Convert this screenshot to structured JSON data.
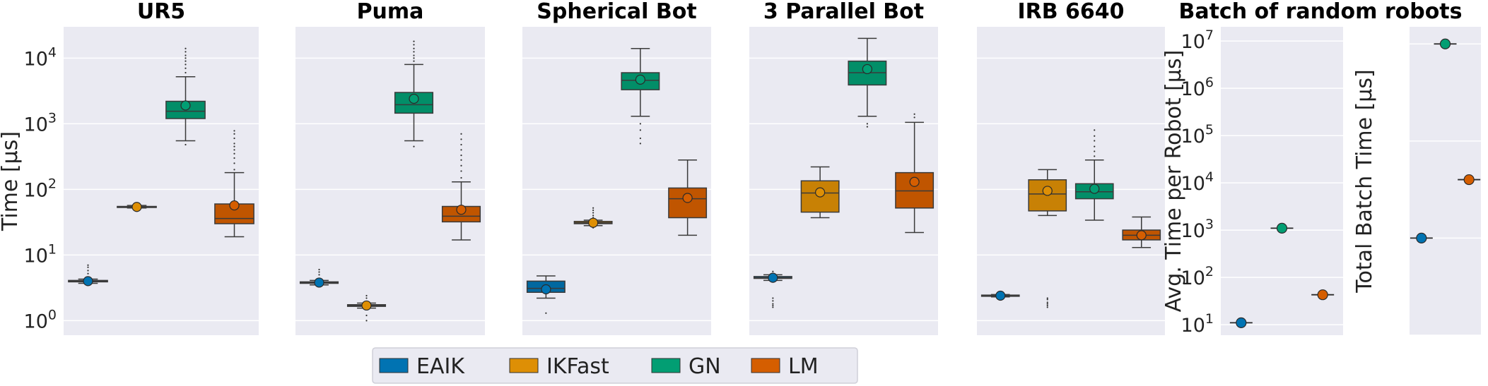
{
  "figure": {
    "batch_group_title": "Batch of random robots"
  },
  "legend": [
    {
      "name": "EAIK",
      "color": "#0173b2"
    },
    {
      "name": "IKFast",
      "color": "#de8f05"
    },
    {
      "name": "GN",
      "color": "#029e73"
    },
    {
      "name": "LM",
      "color": "#d55e00"
    }
  ],
  "chart_data": [
    {
      "type": "box",
      "title": "UR5",
      "ylabel": "Time [µs]",
      "yscale": "log",
      "ylim": [
        0.6,
        30000
      ],
      "yticks": [
        1,
        10,
        100,
        1000,
        10000
      ],
      "ytick_labels": [
        [
          "10",
          "0"
        ],
        [
          "10",
          "1"
        ],
        [
          "10",
          "2"
        ],
        [
          "10",
          "3"
        ],
        [
          "10",
          "4"
        ]
      ],
      "boxes": [
        {
          "series": "EAIK",
          "q1": 3.9,
          "median": 4.0,
          "q3": 4.1,
          "whislo": 3.7,
          "whishi": 4.3,
          "mean": 4.0,
          "fliers": [
            5.2,
            5.8,
            6.5,
            7.0
          ]
        },
        {
          "series": "IKFast",
          "q1": 53,
          "median": 54,
          "q3": 55,
          "whislo": 52,
          "whishi": 57,
          "mean": 54,
          "fliers": [
            60,
            62
          ]
        },
        {
          "series": "GN",
          "q1": 1200,
          "median": 1550,
          "q3": 2200,
          "whislo": 550,
          "whishi": 5200,
          "mean": 1900,
          "fliers": [
            480,
            6000,
            7000,
            8000,
            9000,
            10000,
            11000,
            12500,
            14000
          ]
        },
        {
          "series": "LM",
          "q1": 30,
          "median": 36,
          "q3": 60,
          "whislo": 19,
          "whishi": 180,
          "mean": 57,
          "fliers": [
            200,
            250,
            300,
            350,
            400,
            450,
            500,
            600,
            700,
            780
          ]
        }
      ]
    },
    {
      "type": "box",
      "title": "Puma",
      "yscale": "log",
      "ylim": [
        0.6,
        30000
      ],
      "boxes": [
        {
          "series": "EAIK",
          "q1": 3.7,
          "median": 3.8,
          "q3": 3.9,
          "whislo": 3.5,
          "whishi": 4.1,
          "mean": 3.8,
          "fliers": [
            5.0,
            5.5,
            6.0
          ]
        },
        {
          "series": "IKFast",
          "q1": 1.65,
          "median": 1.7,
          "q3": 1.75,
          "whislo": 1.55,
          "whishi": 1.85,
          "mean": 1.7,
          "fliers": [
            1.0,
            1.2,
            2.2,
            2.4
          ]
        },
        {
          "series": "GN",
          "q1": 1450,
          "median": 1950,
          "q3": 3000,
          "whislo": 550,
          "whishi": 8000,
          "mean": 2400,
          "fliers": [
            450,
            9000,
            10000,
            11000,
            12500,
            14000,
            16000,
            18000
          ]
        },
        {
          "series": "LM",
          "q1": 32,
          "median": 39,
          "q3": 55,
          "whislo": 17,
          "whishi": 130,
          "mean": 49,
          "fliers": [
            150,
            190,
            230,
            280,
            330,
            400,
            480,
            580,
            700
          ]
        }
      ]
    },
    {
      "type": "box",
      "title": "Spherical Bot",
      "yscale": "log",
      "ylim": [
        0.6,
        30000
      ],
      "boxes": [
        {
          "series": "EAIK",
          "q1": 2.7,
          "median": 3.1,
          "q3": 4.0,
          "whislo": 2.2,
          "whishi": 4.8,
          "mean": 3.0,
          "fliers": [
            1.3
          ]
        },
        {
          "series": "IKFast",
          "q1": 30,
          "median": 31,
          "q3": 32.5,
          "whislo": 28,
          "whishi": 34,
          "mean": 31,
          "fliers": [
            26,
            37,
            40,
            44,
            48,
            52
          ]
        },
        {
          "series": "GN",
          "q1": 3300,
          "median": 4600,
          "q3": 6000,
          "whislo": 1300,
          "whishi": 14000,
          "mean": 4700,
          "fliers": [
            500,
            600,
            800,
            1000
          ]
        },
        {
          "series": "LM",
          "q1": 37,
          "median": 72,
          "q3": 105,
          "whislo": 20,
          "whishi": 280,
          "mean": 74,
          "fliers": []
        }
      ]
    },
    {
      "type": "box",
      "title": "3 Parallel Bot",
      "yscale": "log",
      "ylim": [
        0.6,
        30000
      ],
      "boxes": [
        {
          "series": "EAIK",
          "q1": 4.4,
          "median": 4.5,
          "q3": 4.7,
          "whislo": 4.1,
          "whishi": 5.0,
          "mean": 4.5,
          "fliers": [
            1.6,
            1.7,
            1.8,
            2.0,
            2.2,
            5.6
          ]
        },
        {
          "series": "IKFast",
          "q1": 45,
          "median": 88,
          "q3": 135,
          "whislo": 37,
          "whishi": 220,
          "mean": 90,
          "fliers": []
        },
        {
          "series": "GN",
          "q1": 3900,
          "median": 6000,
          "q3": 9000,
          "whislo": 1300,
          "whishi": 20000,
          "mean": 6800,
          "fliers": [
            900,
            1000
          ]
        },
        {
          "series": "LM",
          "q1": 52,
          "median": 95,
          "q3": 180,
          "whislo": 22,
          "whishi": 1050,
          "mean": 130,
          "fliers": [
            1250,
            1400
          ]
        }
      ]
    },
    {
      "type": "box",
      "title": "IRB 6640",
      "yscale": "log",
      "ylim": [
        0.6,
        30000
      ],
      "boxes": [
        {
          "series": "EAIK",
          "q1": 2.35,
          "median": 2.4,
          "q3": 2.45,
          "whislo": 2.3,
          "whishi": 2.5,
          "mean": 2.4,
          "fliers": []
        },
        {
          "series": "IKFast",
          "q1": 47,
          "median": 85,
          "q3": 140,
          "whislo": 40,
          "whishi": 200,
          "mean": 95,
          "fliers": [
            1.6,
            1.7,
            1.8,
            1.9,
            2.1,
            2.2
          ]
        },
        {
          "series": "GN",
          "q1": 72,
          "median": 92,
          "q3": 122,
          "whislo": 34,
          "whishi": 280,
          "mean": 102,
          "fliers": [
            320,
            380,
            450,
            550,
            650,
            800
          ]
        },
        {
          "series": "LM",
          "q1": 17,
          "median": 20,
          "q3": 24,
          "whislo": 13,
          "whishi": 38,
          "mean": 20,
          "fliers": []
        }
      ]
    },
    {
      "type": "scatter",
      "ylabel": "Avg. Time per Robot [µs]",
      "yscale": "log",
      "ylim": [
        6,
        20000000
      ],
      "yticks": [
        10,
        100,
        1000,
        10000,
        100000,
        1000000,
        10000000
      ],
      "ytick_labels": [
        [
          "10",
          "1"
        ],
        [
          "10",
          "2"
        ],
        [
          "10",
          "3"
        ],
        [
          "10",
          "4"
        ],
        [
          "10",
          "5"
        ],
        [
          "10",
          "6"
        ],
        [
          "10",
          "7"
        ]
      ],
      "points": [
        {
          "series": "EAIK",
          "x": 0,
          "y": 11
        },
        {
          "series": "GN",
          "x": 1,
          "y": 1100
        },
        {
          "series": "LM",
          "x": 2,
          "y": 43
        }
      ]
    },
    {
      "type": "scatter",
      "ylabel": "Total Batch Time [µs]",
      "yscale": "log",
      "ylim": [
        10000,
        15000000
      ],
      "points": [
        {
          "series": "EAIK",
          "x": 0,
          "y": 100000
        },
        {
          "series": "GN",
          "x": 1,
          "y": 10000000
        },
        {
          "series": "LM",
          "x": 2,
          "y": 400000
        }
      ]
    }
  ]
}
